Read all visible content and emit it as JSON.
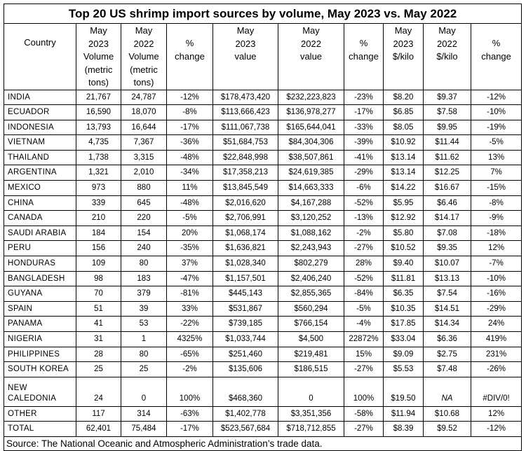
{
  "title": "Top 20 US shrimp import sources by volume, May 2023 vs. May 2022",
  "columns": [
    "Country",
    "May\n2023\nVolume\n(metric\ntons)",
    "May\n2022\nVolume\n(metric\ntons)",
    "%\nchange",
    "May\n2023\nvalue",
    "May\n2022\nvalue",
    "%\nchange",
    "May\n2023\n$/kilo",
    "May\n2022\n$/kilo",
    "%\nchange"
  ],
  "rows": [
    [
      "INDIA",
      "21,767",
      "24,787",
      "-12%",
      "$178,473,420",
      "$232,223,823",
      "-23%",
      "$8.20",
      "$9.37",
      "-12%"
    ],
    [
      "ECUADOR",
      "16,590",
      "18,070",
      "-8%",
      "$113,666,423",
      "$136,978,277",
      "-17%",
      "$6.85",
      "$7.58",
      "-10%"
    ],
    [
      "INDONESIA",
      "13,793",
      "16,644",
      "-17%",
      "$111,067,738",
      "$165,644,041",
      "-33%",
      "$8.05",
      "$9.95",
      "-19%"
    ],
    [
      "VIETNAM",
      "4,735",
      "7,367",
      "-36%",
      "$51,684,753",
      "$84,304,306",
      "-39%",
      "$10.92",
      "$11.44",
      "-5%"
    ],
    [
      "THAILAND",
      "1,738",
      "3,315",
      "-48%",
      "$22,848,998",
      "$38,507,861",
      "-41%",
      "$13.14",
      "$11.62",
      "13%"
    ],
    [
      "ARGENTINA",
      "1,321",
      "2,010",
      "-34%",
      "$17,358,213",
      "$24,619,385",
      "-29%",
      "$13.14",
      "$12.25",
      "7%"
    ],
    [
      "MEXICO",
      "973",
      "880",
      "11%",
      "$13,845,549",
      "$14,663,333",
      "-6%",
      "$14.22",
      "$16.67",
      "-15%"
    ],
    [
      "CHINA",
      "339",
      "645",
      "-48%",
      "$2,016,620",
      "$4,167,288",
      "-52%",
      "$5.95",
      "$6.46",
      "-8%"
    ],
    [
      "CANADA",
      "210",
      "220",
      "-5%",
      "$2,706,991",
      "$3,120,252",
      "-13%",
      "$12.92",
      "$14.17",
      "-9%"
    ],
    [
      "SAUDI ARABIA",
      "184",
      "154",
      "20%",
      "$1,068,174",
      "$1,088,162",
      "-2%",
      "$5.80",
      "$7.08",
      "-18%"
    ],
    [
      "PERU",
      "156",
      "240",
      "-35%",
      "$1,636,821",
      "$2,243,943",
      "-27%",
      "$10.52",
      "$9.35",
      "12%"
    ],
    [
      "HONDURAS",
      "109",
      "80",
      "37%",
      "$1,028,340",
      "$802,279",
      "28%",
      "$9.40",
      "$10.07",
      "-7%"
    ],
    [
      "BANGLADESH",
      "98",
      "183",
      "-47%",
      "$1,157,501",
      "$2,406,240",
      "-52%",
      "$11.81",
      "$13.13",
      "-10%"
    ],
    [
      "GUYANA",
      "70",
      "379",
      "-81%",
      "$445,143",
      "$2,855,365",
      "-84%",
      "$6.35",
      "$7.54",
      "-16%"
    ],
    [
      "SPAIN",
      "51",
      "39",
      "33%",
      "$531,867",
      "$560,294",
      "-5%",
      "$10.35",
      "$14.51",
      "-29%"
    ],
    [
      "PANAMA",
      "41",
      "53",
      "-22%",
      "$739,185",
      "$766,154",
      "-4%",
      "$17.85",
      "$14.34",
      "24%"
    ],
    [
      "NIGERIA",
      "31",
      "1",
      "4325%",
      "$1,033,744",
      "$4,500",
      "22872%",
      "$33.04",
      "$6.36",
      "419%"
    ],
    [
      "PHILIPPINES",
      "28",
      "80",
      "-65%",
      "$251,460",
      "$219,481",
      "15%",
      "$9.09",
      "$2.75",
      "231%"
    ],
    [
      "SOUTH KOREA",
      "25",
      "25",
      "-2%",
      "$135,606",
      "$186,515",
      "-27%",
      "$5.53",
      "$7.48",
      "-26%"
    ],
    [
      "NEW\nCALEDONIA",
      "24",
      "0",
      "100%",
      "$468,360",
      "0",
      "100%",
      "$19.50",
      "NA",
      "#DIV/0!"
    ],
    [
      "OTHER",
      "117",
      "314",
      "-63%",
      "$1,402,778",
      "$3,351,356",
      "-58%",
      "$11.94",
      "$10.68",
      "12%"
    ],
    [
      "TOTAL",
      "62,401",
      "75,484",
      "-17%",
      "$523,567,684",
      "$718,712,855",
      "-27%",
      "$8.39",
      "$9.52",
      "-12%"
    ]
  ],
  "source": "Source: The National Oceanic and Atmospheric Administration’s trade data."
}
